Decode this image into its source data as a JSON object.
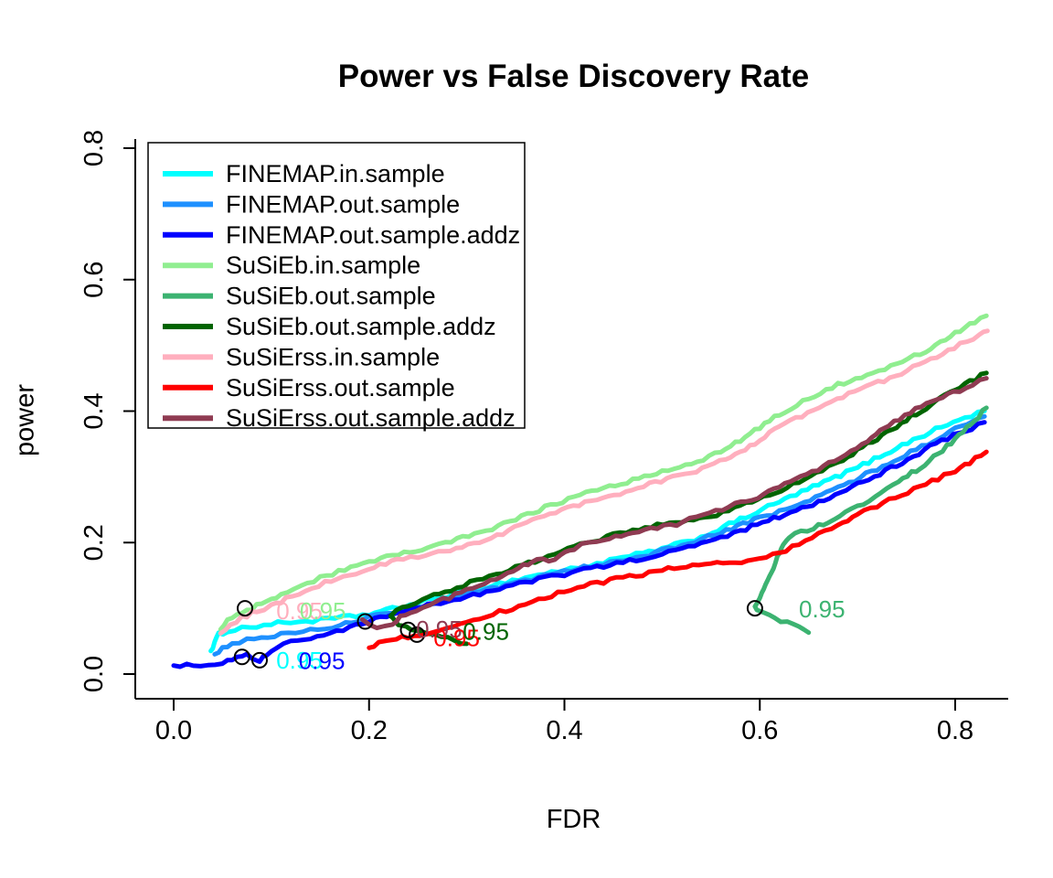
{
  "chart_data": {
    "type": "line",
    "title": "Power vs False Discovery Rate",
    "xlabel": "FDR",
    "ylabel": "power",
    "xlim": [
      0,
      0.85
    ],
    "ylim": [
      0,
      0.8
    ],
    "xticks": [
      0,
      0.2,
      0.4,
      0.6,
      0.8
    ],
    "yticks": [
      0,
      0.2,
      0.4,
      0.6,
      0.8
    ],
    "grid": false,
    "legend_position": "top-left",
    "threshold_label_text": "0.95",
    "series": [
      {
        "name": "FINEMAP.in.sample",
        "color": "#00FFFF",
        "points": [
          [
            0.038,
            0.035
          ],
          [
            0.042,
            0.048
          ],
          [
            0.046,
            0.06
          ],
          [
            0.055,
            0.066
          ],
          [
            0.07,
            0.07
          ],
          [
            0.085,
            0.073
          ],
          [
            0.1,
            0.076
          ],
          [
            0.12,
            0.079
          ],
          [
            0.15,
            0.082
          ],
          [
            0.18,
            0.087
          ],
          [
            0.2,
            0.091
          ],
          [
            0.23,
            0.101
          ],
          [
            0.26,
            0.112
          ],
          [
            0.3,
            0.126
          ],
          [
            0.34,
            0.14
          ],
          [
            0.38,
            0.153
          ],
          [
            0.42,
            0.163
          ],
          [
            0.46,
            0.177
          ],
          [
            0.5,
            0.19
          ],
          [
            0.54,
            0.208
          ],
          [
            0.58,
            0.235
          ],
          [
            0.62,
            0.262
          ],
          [
            0.66,
            0.288
          ],
          [
            0.7,
            0.314
          ],
          [
            0.74,
            0.344
          ],
          [
            0.78,
            0.372
          ],
          [
            0.81,
            0.39
          ],
          [
            0.83,
            0.4
          ]
        ]
      },
      {
        "name": "FINEMAP.out.sample",
        "color": "#1E90FF",
        "points": [
          [
            0.042,
            0.03
          ],
          [
            0.05,
            0.04
          ],
          [
            0.06,
            0.047
          ],
          [
            0.075,
            0.052
          ],
          [
            0.09,
            0.056
          ],
          [
            0.11,
            0.06
          ],
          [
            0.14,
            0.066
          ],
          [
            0.17,
            0.075
          ],
          [
            0.2,
            0.086
          ],
          [
            0.24,
            0.1
          ],
          [
            0.28,
            0.113
          ],
          [
            0.32,
            0.127
          ],
          [
            0.36,
            0.142
          ],
          [
            0.4,
            0.156
          ],
          [
            0.44,
            0.168
          ],
          [
            0.48,
            0.18
          ],
          [
            0.52,
            0.195
          ],
          [
            0.56,
            0.215
          ],
          [
            0.6,
            0.237
          ],
          [
            0.64,
            0.258
          ],
          [
            0.68,
            0.283
          ],
          [
            0.72,
            0.312
          ],
          [
            0.76,
            0.342
          ],
          [
            0.8,
            0.372
          ],
          [
            0.83,
            0.392
          ]
        ]
      },
      {
        "name": "FINEMAP.out.sample.addz",
        "color": "#0000FF",
        "points": [
          [
            0.0,
            0.013
          ],
          [
            0.02,
            0.013
          ],
          [
            0.035,
            0.014
          ],
          [
            0.05,
            0.018
          ],
          [
            0.06,
            0.024
          ],
          [
            0.07,
            0.03
          ],
          [
            0.08,
            0.026
          ],
          [
            0.088,
            0.02
          ],
          [
            0.095,
            0.03
          ],
          [
            0.105,
            0.04
          ],
          [
            0.12,
            0.048
          ],
          [
            0.14,
            0.055
          ],
          [
            0.16,
            0.062
          ],
          [
            0.18,
            0.07
          ],
          [
            0.2,
            0.08
          ],
          [
            0.23,
            0.093
          ],
          [
            0.26,
            0.105
          ],
          [
            0.3,
            0.118
          ],
          [
            0.34,
            0.132
          ],
          [
            0.38,
            0.146
          ],
          [
            0.42,
            0.158
          ],
          [
            0.46,
            0.17
          ],
          [
            0.5,
            0.182
          ],
          [
            0.54,
            0.198
          ],
          [
            0.58,
            0.218
          ],
          [
            0.62,
            0.24
          ],
          [
            0.66,
            0.262
          ],
          [
            0.7,
            0.288
          ],
          [
            0.74,
            0.318
          ],
          [
            0.78,
            0.35
          ],
          [
            0.81,
            0.37
          ],
          [
            0.83,
            0.383
          ]
        ]
      },
      {
        "name": "SuSiEb.in.sample",
        "color": "#90EE90",
        "points": [
          [
            0.048,
            0.068
          ],
          [
            0.055,
            0.08
          ],
          [
            0.065,
            0.09
          ],
          [
            0.08,
            0.1
          ],
          [
            0.095,
            0.11
          ],
          [
            0.11,
            0.12
          ],
          [
            0.13,
            0.133
          ],
          [
            0.15,
            0.147
          ],
          [
            0.175,
            0.158
          ],
          [
            0.2,
            0.17
          ],
          [
            0.23,
            0.182
          ],
          [
            0.26,
            0.192
          ],
          [
            0.29,
            0.204
          ],
          [
            0.32,
            0.218
          ],
          [
            0.35,
            0.235
          ],
          [
            0.38,
            0.253
          ],
          [
            0.41,
            0.27
          ],
          [
            0.44,
            0.283
          ],
          [
            0.47,
            0.295
          ],
          [
            0.5,
            0.308
          ],
          [
            0.53,
            0.32
          ],
          [
            0.56,
            0.338
          ],
          [
            0.59,
            0.365
          ],
          [
            0.62,
            0.396
          ],
          [
            0.65,
            0.42
          ],
          [
            0.68,
            0.44
          ],
          [
            0.71,
            0.456
          ],
          [
            0.74,
            0.472
          ],
          [
            0.77,
            0.492
          ],
          [
            0.8,
            0.518
          ],
          [
            0.82,
            0.535
          ],
          [
            0.832,
            0.545
          ]
        ]
      },
      {
        "name": "SuSiEb.out.sample",
        "color": "#3CB371",
        "points": [
          [
            0.65,
            0.063
          ],
          [
            0.64,
            0.07
          ],
          [
            0.628,
            0.078
          ],
          [
            0.615,
            0.086
          ],
          [
            0.605,
            0.092
          ],
          [
            0.597,
            0.098
          ],
          [
            0.595,
            0.105
          ],
          [
            0.6,
            0.118
          ],
          [
            0.606,
            0.135
          ],
          [
            0.612,
            0.155
          ],
          [
            0.618,
            0.178
          ],
          [
            0.624,
            0.198
          ],
          [
            0.63,
            0.21
          ],
          [
            0.642,
            0.216
          ],
          [
            0.655,
            0.222
          ],
          [
            0.67,
            0.232
          ],
          [
            0.688,
            0.246
          ],
          [
            0.706,
            0.26
          ],
          [
            0.724,
            0.276
          ],
          [
            0.742,
            0.292
          ],
          [
            0.76,
            0.31
          ],
          [
            0.778,
            0.33
          ],
          [
            0.796,
            0.352
          ],
          [
            0.812,
            0.375
          ],
          [
            0.824,
            0.392
          ],
          [
            0.832,
            0.405
          ]
        ]
      },
      {
        "name": "SuSiEb.out.sample.addz",
        "color": "#006400",
        "points": [
          [
            0.3,
            0.046
          ],
          [
            0.288,
            0.052
          ],
          [
            0.274,
            0.058
          ],
          [
            0.26,
            0.062
          ],
          [
            0.248,
            0.065
          ],
          [
            0.238,
            0.07
          ],
          [
            0.23,
            0.076
          ],
          [
            0.224,
            0.083
          ],
          [
            0.222,
            0.09
          ],
          [
            0.228,
            0.097
          ],
          [
            0.24,
            0.105
          ],
          [
            0.255,
            0.113
          ],
          [
            0.272,
            0.122
          ],
          [
            0.29,
            0.132
          ],
          [
            0.31,
            0.142
          ],
          [
            0.33,
            0.152
          ],
          [
            0.35,
            0.162
          ],
          [
            0.37,
            0.172
          ],
          [
            0.39,
            0.183
          ],
          [
            0.41,
            0.193
          ],
          [
            0.43,
            0.202
          ],
          [
            0.45,
            0.212
          ],
          [
            0.47,
            0.22
          ],
          [
            0.495,
            0.226
          ],
          [
            0.52,
            0.23
          ],
          [
            0.55,
            0.24
          ],
          [
            0.58,
            0.256
          ],
          [
            0.61,
            0.272
          ],
          [
            0.64,
            0.292
          ],
          [
            0.67,
            0.314
          ],
          [
            0.7,
            0.34
          ],
          [
            0.73,
            0.368
          ],
          [
            0.76,
            0.396
          ],
          [
            0.79,
            0.424
          ],
          [
            0.815,
            0.444
          ],
          [
            0.832,
            0.458
          ]
        ]
      },
      {
        "name": "SuSiErss.in.sample",
        "color": "#FFAFBE",
        "points": [
          [
            0.048,
            0.062
          ],
          [
            0.058,
            0.075
          ],
          [
            0.07,
            0.086
          ],
          [
            0.085,
            0.096
          ],
          [
            0.1,
            0.104
          ],
          [
            0.115,
            0.114
          ],
          [
            0.135,
            0.127
          ],
          [
            0.155,
            0.14
          ],
          [
            0.18,
            0.152
          ],
          [
            0.205,
            0.163
          ],
          [
            0.235,
            0.175
          ],
          [
            0.265,
            0.184
          ],
          [
            0.295,
            0.194
          ],
          [
            0.325,
            0.208
          ],
          [
            0.355,
            0.225
          ],
          [
            0.385,
            0.243
          ],
          [
            0.415,
            0.258
          ],
          [
            0.445,
            0.27
          ],
          [
            0.475,
            0.283
          ],
          [
            0.505,
            0.296
          ],
          [
            0.535,
            0.308
          ],
          [
            0.565,
            0.326
          ],
          [
            0.595,
            0.352
          ],
          [
            0.625,
            0.38
          ],
          [
            0.655,
            0.402
          ],
          [
            0.685,
            0.422
          ],
          [
            0.715,
            0.44
          ],
          [
            0.745,
            0.458
          ],
          [
            0.775,
            0.478
          ],
          [
            0.805,
            0.502
          ],
          [
            0.825,
            0.515
          ],
          [
            0.833,
            0.522
          ]
        ]
      },
      {
        "name": "SuSiErss.out.sample",
        "color": "#FF0000",
        "points": [
          [
            0.2,
            0.04
          ],
          [
            0.21,
            0.046
          ],
          [
            0.218,
            0.05
          ],
          [
            0.228,
            0.053
          ],
          [
            0.24,
            0.057
          ],
          [
            0.252,
            0.06
          ],
          [
            0.265,
            0.064
          ],
          [
            0.28,
            0.07
          ],
          [
            0.3,
            0.078
          ],
          [
            0.32,
            0.088
          ],
          [
            0.34,
            0.097
          ],
          [
            0.36,
            0.106
          ],
          [
            0.38,
            0.116
          ],
          [
            0.4,
            0.126
          ],
          [
            0.42,
            0.134
          ],
          [
            0.44,
            0.14
          ],
          [
            0.46,
            0.147
          ],
          [
            0.48,
            0.152
          ],
          [
            0.5,
            0.158
          ],
          [
            0.525,
            0.163
          ],
          [
            0.55,
            0.167
          ],
          [
            0.575,
            0.171
          ],
          [
            0.6,
            0.175
          ],
          [
            0.62,
            0.185
          ],
          [
            0.64,
            0.198
          ],
          [
            0.66,
            0.212
          ],
          [
            0.68,
            0.226
          ],
          [
            0.7,
            0.242
          ],
          [
            0.72,
            0.256
          ],
          [
            0.745,
            0.272
          ],
          [
            0.77,
            0.288
          ],
          [
            0.795,
            0.306
          ],
          [
            0.815,
            0.322
          ],
          [
            0.832,
            0.338
          ]
        ]
      },
      {
        "name": "SuSiErss.out.sample.addz",
        "color": "#8F3B52",
        "points": [
          [
            0.193,
            0.083
          ],
          [
            0.2,
            0.076
          ],
          [
            0.208,
            0.07
          ],
          [
            0.216,
            0.072
          ],
          [
            0.224,
            0.078
          ],
          [
            0.232,
            0.086
          ],
          [
            0.242,
            0.094
          ],
          [
            0.255,
            0.102
          ],
          [
            0.27,
            0.11
          ],
          [
            0.288,
            0.12
          ],
          [
            0.306,
            0.13
          ],
          [
            0.324,
            0.14
          ],
          [
            0.342,
            0.152
          ],
          [
            0.358,
            0.165
          ],
          [
            0.372,
            0.176
          ],
          [
            0.384,
            0.172
          ],
          [
            0.396,
            0.18
          ],
          [
            0.41,
            0.192
          ],
          [
            0.425,
            0.2
          ],
          [
            0.44,
            0.206
          ],
          [
            0.458,
            0.212
          ],
          [
            0.476,
            0.218
          ],
          [
            0.495,
            0.222
          ],
          [
            0.515,
            0.228
          ],
          [
            0.535,
            0.238
          ],
          [
            0.555,
            0.248
          ],
          [
            0.575,
            0.258
          ],
          [
            0.598,
            0.27
          ],
          [
            0.62,
            0.284
          ],
          [
            0.642,
            0.3
          ],
          [
            0.665,
            0.316
          ],
          [
            0.688,
            0.334
          ],
          [
            0.71,
            0.355
          ],
          [
            0.732,
            0.378
          ],
          [
            0.754,
            0.398
          ],
          [
            0.776,
            0.415
          ],
          [
            0.798,
            0.428
          ],
          [
            0.818,
            0.44
          ],
          [
            0.832,
            0.45
          ]
        ]
      }
    ],
    "threshold_circles": [
      {
        "x": 0.073,
        "y": 0.1
      },
      {
        "x": 0.07,
        "y": 0.026
      },
      {
        "x": 0.088,
        "y": 0.021
      },
      {
        "x": 0.196,
        "y": 0.08
      },
      {
        "x": 0.24,
        "y": 0.067
      },
      {
        "x": 0.249,
        "y": 0.06
      },
      {
        "x": 0.595,
        "y": 0.1
      }
    ],
    "threshold_labels": [
      {
        "x": 0.105,
        "y": 0.096,
        "color": "#FFAFBE"
      },
      {
        "x": 0.129,
        "y": 0.096,
        "color": "#90EE90"
      },
      {
        "x": 0.105,
        "y": 0.021,
        "color": "#00FFFF"
      },
      {
        "x": 0.128,
        "y": 0.02,
        "color": "#0000FF"
      },
      {
        "x": 0.248,
        "y": 0.068,
        "color": "#8F3B52"
      },
      {
        "x": 0.266,
        "y": 0.055,
        "color": "#FF0000"
      },
      {
        "x": 0.296,
        "y": 0.065,
        "color": "#006400"
      },
      {
        "x": 0.64,
        "y": 0.099,
        "color": "#3CB371"
      }
    ]
  }
}
